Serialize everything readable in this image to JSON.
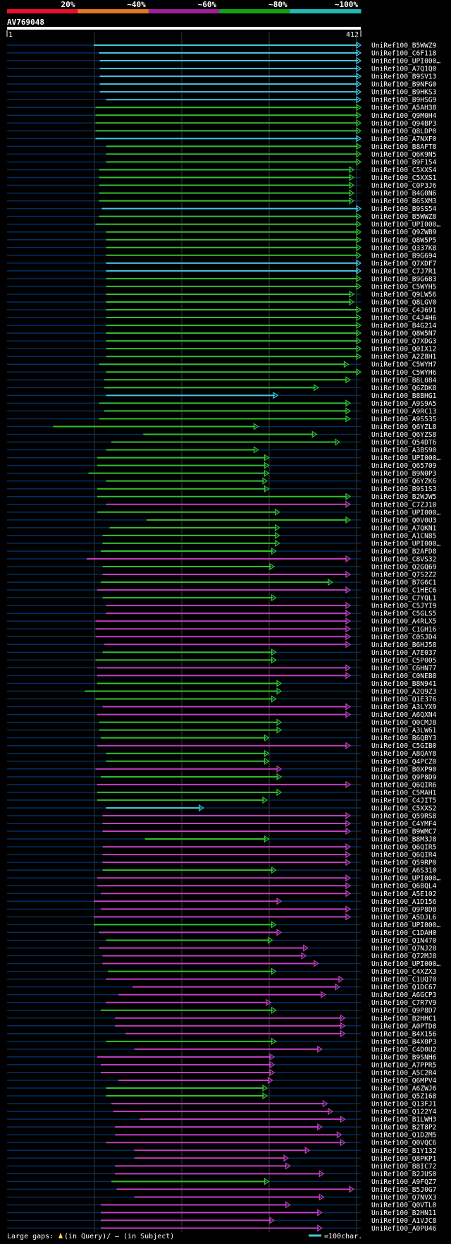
{
  "chart_data": {
    "type": "alignment-overview",
    "query_id": "AV769048",
    "query_start": "1",
    "query_end": "412",
    "scale_labels": [
      "20%",
      "~40%",
      "~60%",
      "~80%",
      "~100%"
    ],
    "scale_colors": [
      "#e8102a",
      "#e07820",
      "#a0209a",
      "#18a018",
      "#20b8b8"
    ],
    "row_colors": {
      "cyan": "#40c8e0",
      "green": "#30c030",
      "magenta": "#c040c0",
      "blue": "#003060"
    },
    "legend": {
      "gaps_prefix": "Large gaps: ",
      "gaps_query": "(in Query)/",
      "gaps_subject": "– (in Subject)",
      "scale": "=100char."
    },
    "hits": [
      {
        "name": "UniRef100_B5WWZ9",
        "color": "cyan",
        "start": 0.245,
        "end": 1.0
      },
      {
        "name": "UniRef100_C6F118",
        "color": "cyan",
        "start": 0.26,
        "end": 1.0
      },
      {
        "name": "UniRef100_UPI000…",
        "color": "cyan",
        "start": 0.262,
        "end": 1.0
      },
      {
        "name": "UniRef100_A7Q1Q0",
        "color": "cyan",
        "start": 0.262,
        "end": 1.0
      },
      {
        "name": "UniRef100_B9SV13",
        "color": "cyan",
        "start": 0.262,
        "end": 1.0
      },
      {
        "name": "UniRef100_B9NFG0",
        "color": "cyan",
        "start": 0.262,
        "end": 1.0
      },
      {
        "name": "UniRef100_B9HKS3",
        "color": "cyan",
        "start": 0.262,
        "end": 1.0
      },
      {
        "name": "UniRef100_B9HSG9",
        "color": "cyan",
        "start": 0.28,
        "end": 1.0
      },
      {
        "name": "UniRef100_A5AH38",
        "color": "green",
        "start": 0.25,
        "end": 1.0
      },
      {
        "name": "UniRef100_Q9M0H4",
        "color": "green",
        "start": 0.25,
        "end": 1.0
      },
      {
        "name": "UniRef100_Q94BP3",
        "color": "green",
        "start": 0.25,
        "end": 1.0
      },
      {
        "name": "UniRef100_Q8LDP0",
        "color": "green",
        "start": 0.25,
        "end": 1.0
      },
      {
        "name": "UniRef100_A7NXF0",
        "color": "cyan",
        "start": 0.25,
        "end": 1.0
      },
      {
        "name": "UniRef100_B8AFT8",
        "color": "green",
        "start": 0.28,
        "end": 1.0
      },
      {
        "name": "UniRef100_Q6K9N5",
        "color": "green",
        "start": 0.28,
        "end": 1.0
      },
      {
        "name": "UniRef100_B9F154",
        "color": "green",
        "start": 0.28,
        "end": 1.0
      },
      {
        "name": "UniRef100_C5XXS4",
        "color": "green",
        "start": 0.26,
        "end": 0.98
      },
      {
        "name": "UniRef100_C5XXS1",
        "color": "green",
        "start": 0.26,
        "end": 0.98
      },
      {
        "name": "UniRef100_C0P3J6",
        "color": "green",
        "start": 0.26,
        "end": 0.98
      },
      {
        "name": "UniRef100_B4G0N6",
        "color": "green",
        "start": 0.26,
        "end": 0.98
      },
      {
        "name": "UniRef100_B6SXM3",
        "color": "green",
        "start": 0.26,
        "end": 0.98
      },
      {
        "name": "UniRef100_B9SS54",
        "color": "cyan",
        "start": 0.268,
        "end": 1.0
      },
      {
        "name": "UniRef100_B5WWZ8",
        "color": "green",
        "start": 0.26,
        "end": 1.0
      },
      {
        "name": "UniRef100_UPI000…",
        "color": "green",
        "start": 0.25,
        "end": 1.0
      },
      {
        "name": "UniRef100_Q9ZWB9",
        "color": "green",
        "start": 0.28,
        "end": 1.0
      },
      {
        "name": "UniRef100_Q8W5P5",
        "color": "green",
        "start": 0.28,
        "end": 1.0
      },
      {
        "name": "UniRef100_Q337K8",
        "color": "green",
        "start": 0.28,
        "end": 1.0
      },
      {
        "name": "UniRef100_B9G694",
        "color": "green",
        "start": 0.28,
        "end": 1.0
      },
      {
        "name": "UniRef100_Q7XDF7",
        "color": "cyan",
        "start": 0.28,
        "end": 1.0
      },
      {
        "name": "UniRef100_C7J7R1",
        "color": "cyan",
        "start": 0.28,
        "end": 1.0
      },
      {
        "name": "UniRef100_B9G683",
        "color": "green",
        "start": 0.28,
        "end": 1.0
      },
      {
        "name": "UniRef100_C5WYH5",
        "color": "green",
        "start": 0.28,
        "end": 1.0
      },
      {
        "name": "UniRef100_Q9LW56",
        "color": "green",
        "start": 0.28,
        "end": 0.98
      },
      {
        "name": "UniRef100_Q8LGV0",
        "color": "green",
        "start": 0.28,
        "end": 0.98
      },
      {
        "name": "UniRef100_C4J691",
        "color": "green",
        "start": 0.28,
        "end": 1.0
      },
      {
        "name": "UniRef100_C4J4H6",
        "color": "green",
        "start": 0.28,
        "end": 1.0
      },
      {
        "name": "UniRef100_B4G214",
        "color": "green",
        "start": 0.28,
        "end": 1.0
      },
      {
        "name": "UniRef100_Q8W5N7",
        "color": "green",
        "start": 0.28,
        "end": 1.0
      },
      {
        "name": "UniRef100_Q7XDG3",
        "color": "green",
        "start": 0.28,
        "end": 1.0
      },
      {
        "name": "UniRef100_Q0IX12",
        "color": "green",
        "start": 0.28,
        "end": 1.0
      },
      {
        "name": "UniRef100_A2Z8H1",
        "color": "green",
        "start": 0.28,
        "end": 1.0
      },
      {
        "name": "UniRef100_C5WYH7",
        "color": "green",
        "start": 0.26,
        "end": 0.965
      },
      {
        "name": "UniRef100_C5WYH6",
        "color": "green",
        "start": 0.28,
        "end": 1.0
      },
      {
        "name": "UniRef100_B8L084",
        "color": "green",
        "start": 0.275,
        "end": 0.97
      },
      {
        "name": "UniRef100_Q6ZDK8",
        "color": "green",
        "start": 0.275,
        "end": 0.88
      },
      {
        "name": "UniRef100_B8BHG1",
        "color": "cyan",
        "start": 0.28,
        "end": 0.765
      },
      {
        "name": "UniRef100_A9S9A5",
        "color": "green",
        "start": 0.26,
        "end": 0.97
      },
      {
        "name": "UniRef100_A9RC13",
        "color": "green",
        "start": 0.275,
        "end": 0.97
      },
      {
        "name": "UniRef100_A9S535",
        "color": "green",
        "start": 0.26,
        "end": 0.97
      },
      {
        "name": "UniRef100_Q6YZL8",
        "color": "green",
        "start": 0.13,
        "end": 0.71
      },
      {
        "name": "UniRef100_Q6YZS8",
        "color": "green",
        "start": 0.385,
        "end": 0.875
      },
      {
        "name": "UniRef100_Q54DT6",
        "color": "green",
        "start": 0.295,
        "end": 0.94
      },
      {
        "name": "UniRef100_A3BS90",
        "color": "green",
        "start": 0.28,
        "end": 0.71
      },
      {
        "name": "UniRef100_UPI000…",
        "color": "green",
        "start": 0.255,
        "end": 0.74
      },
      {
        "name": "UniRef100_Q65709",
        "color": "green",
        "start": 0.255,
        "end": 0.74
      },
      {
        "name": "UniRef100_B9N0P3",
        "color": "green",
        "start": 0.23,
        "end": 0.74
      },
      {
        "name": "UniRef100_Q6YZK6",
        "color": "green",
        "start": 0.28,
        "end": 0.735
      },
      {
        "name": "UniRef100_B9S1S3",
        "color": "green",
        "start": 0.255,
        "end": 0.74
      },
      {
        "name": "UniRef100_B2WJW5",
        "color": "green",
        "start": 0.255,
        "end": 0.97
      },
      {
        "name": "UniRef100_C7ZJ10",
        "color": "magenta",
        "start": 0.28,
        "end": 0.97
      },
      {
        "name": "UniRef100_UPI000…",
        "color": "green",
        "start": 0.255,
        "end": 0.77
      },
      {
        "name": "UniRef100_Q0V0U3",
        "color": "green",
        "start": 0.395,
        "end": 0.97
      },
      {
        "name": "UniRef100_A7QKN1",
        "color": "green",
        "start": 0.29,
        "end": 0.77
      },
      {
        "name": "UniRef100_A1CN85",
        "color": "green",
        "start": 0.27,
        "end": 0.77
      },
      {
        "name": "UniRef100_UPI000…",
        "color": "green",
        "start": 0.27,
        "end": 0.77
      },
      {
        "name": "UniRef100_B2AFD8",
        "color": "green",
        "start": 0.265,
        "end": 0.76
      },
      {
        "name": "UniRef100_C8VS32",
        "color": "magenta",
        "start": 0.225,
        "end": 0.97
      },
      {
        "name": "UniRef100_Q2GQ69",
        "color": "green",
        "start": 0.27,
        "end": 0.755
      },
      {
        "name": "UniRef100_Q7S2Z2",
        "color": "magenta",
        "start": 0.27,
        "end": 0.97
      },
      {
        "name": "UniRef100_B7G6C1",
        "color": "green",
        "start": 0.265,
        "end": 0.92
      },
      {
        "name": "UniRef100_C1HEC6",
        "color": "magenta",
        "start": 0.255,
        "end": 0.97
      },
      {
        "name": "UniRef100_C7YQL1",
        "color": "green",
        "start": 0.27,
        "end": 0.76
      },
      {
        "name": "UniRef100_C5JYI9",
        "color": "magenta",
        "start": 0.28,
        "end": 0.97
      },
      {
        "name": "UniRef100_C5GLS5",
        "color": "magenta",
        "start": 0.28,
        "end": 0.97
      },
      {
        "name": "UniRef100_A4RLX5",
        "color": "magenta",
        "start": 0.25,
        "end": 0.97
      },
      {
        "name": "UniRef100_C1GH16",
        "color": "magenta",
        "start": 0.25,
        "end": 0.97
      },
      {
        "name": "UniRef100_C0SJD4",
        "color": "magenta",
        "start": 0.25,
        "end": 0.97
      },
      {
        "name": "UniRef100_B6HJ58",
        "color": "magenta",
        "start": 0.275,
        "end": 0.97
      },
      {
        "name": "UniRef100_A7E037",
        "color": "green",
        "start": 0.27,
        "end": 0.76
      },
      {
        "name": "UniRef100_C5P005",
        "color": "green",
        "start": 0.25,
        "end": 0.76
      },
      {
        "name": "UniRef100_C6HN77",
        "color": "magenta",
        "start": 0.255,
        "end": 0.97
      },
      {
        "name": "UniRef100_C0NEB8",
        "color": "magenta",
        "start": 0.255,
        "end": 0.97
      },
      {
        "name": "UniRef100_B8N941",
        "color": "green",
        "start": 0.255,
        "end": 0.775
      },
      {
        "name": "UniRef100_A2Q9Z3",
        "color": "green",
        "start": 0.22,
        "end": 0.775
      },
      {
        "name": "UniRef100_Q1E376",
        "color": "green",
        "start": 0.25,
        "end": 0.76
      },
      {
        "name": "UniRef100_A3LYX9",
        "color": "magenta",
        "start": 0.27,
        "end": 0.97
      },
      {
        "name": "UniRef100_A6QXN4",
        "color": "magenta",
        "start": 0.255,
        "end": 0.97
      },
      {
        "name": "UniRef100_Q0CMJ8",
        "color": "green",
        "start": 0.26,
        "end": 0.775
      },
      {
        "name": "UniRef100_A3LW61",
        "color": "green",
        "start": 0.26,
        "end": 0.775
      },
      {
        "name": "UniRef100_B6QBY3",
        "color": "green",
        "start": 0.265,
        "end": 0.74
      },
      {
        "name": "UniRef100_C5GIB0",
        "color": "magenta",
        "start": 0.255,
        "end": 0.97
      },
      {
        "name": "UniRef100_A8QAY8",
        "color": "green",
        "start": 0.28,
        "end": 0.74
      },
      {
        "name": "UniRef100_Q4PCZ0",
        "color": "green",
        "start": 0.28,
        "end": 0.74
      },
      {
        "name": "UniRef100_B0XP90",
        "color": "magenta",
        "start": 0.25,
        "end": 0.775
      },
      {
        "name": "UniRef100_Q9P8D9",
        "color": "green",
        "start": 0.265,
        "end": 0.775
      },
      {
        "name": "UniRef100_Q6QIR6",
        "color": "magenta",
        "start": 0.255,
        "end": 0.97
      },
      {
        "name": "UniRef100_C5MAH1",
        "color": "green",
        "start": 0.255,
        "end": 0.775
      },
      {
        "name": "UniRef100_C4JIT5",
        "color": "green",
        "start": 0.255,
        "end": 0.735
      },
      {
        "name": "UniRef100_C5XXS2",
        "color": "cyan",
        "start": 0.28,
        "end": 0.555
      },
      {
        "name": "UniRef100_Q59RS8",
        "color": "magenta",
        "start": 0.27,
        "end": 0.97
      },
      {
        "name": "UniRef100_C4YMF4",
        "color": "magenta",
        "start": 0.27,
        "end": 0.97
      },
      {
        "name": "UniRef100_B9WMC7",
        "color": "magenta",
        "start": 0.27,
        "end": 0.97
      },
      {
        "name": "UniRef100_B8M3J8",
        "color": "green",
        "start": 0.39,
        "end": 0.74
      },
      {
        "name": "UniRef100_Q6QIR5",
        "color": "magenta",
        "start": 0.27,
        "end": 0.97
      },
      {
        "name": "UniRef100_Q6QIR4",
        "color": "magenta",
        "start": 0.27,
        "end": 0.97
      },
      {
        "name": "UniRef100_Q59RP0",
        "color": "magenta",
        "start": 0.27,
        "end": 0.97
      },
      {
        "name": "UniRef100_A6S310",
        "color": "green",
        "start": 0.27,
        "end": 0.76
      },
      {
        "name": "UniRef100_UPI000…",
        "color": "magenta",
        "start": 0.255,
        "end": 0.97
      },
      {
        "name": "UniRef100_Q6BQL4",
        "color": "magenta",
        "start": 0.255,
        "end": 0.97
      },
      {
        "name": "UniRef100_A5E102",
        "color": "magenta",
        "start": 0.265,
        "end": 0.97
      },
      {
        "name": "UniRef100_A1D156",
        "color": "magenta",
        "start": 0.245,
        "end": 0.775
      },
      {
        "name": "UniRef100_Q9P8D8",
        "color": "magenta",
        "start": 0.265,
        "end": 0.97
      },
      {
        "name": "UniRef100_A5DJL6",
        "color": "magenta",
        "start": 0.245,
        "end": 0.97
      },
      {
        "name": "UniRef100_UPI000…",
        "color": "green",
        "start": 0.245,
        "end": 0.76
      },
      {
        "name": "UniRef100_C1DAH0",
        "color": "magenta",
        "start": 0.26,
        "end": 0.775
      },
      {
        "name": "UniRef100_Q1N470",
        "color": "green",
        "start": 0.28,
        "end": 0.75
      },
      {
        "name": "UniRef100_Q7NJ28",
        "color": "magenta",
        "start": 0.26,
        "end": 0.85
      },
      {
        "name": "UniRef100_Q72MJ8",
        "color": "magenta",
        "start": 0.27,
        "end": 0.845
      },
      {
        "name": "UniRef100_UPI000…",
        "color": "magenta",
        "start": 0.27,
        "end": 0.88
      },
      {
        "name": "UniRef100_C4XZX3",
        "color": "green",
        "start": 0.285,
        "end": 0.76
      },
      {
        "name": "UniRef100_C1UQ70",
        "color": "magenta",
        "start": 0.28,
        "end": 0.95
      },
      {
        "name": "UniRef100_Q1DC67",
        "color": "magenta",
        "start": 0.355,
        "end": 0.94
      },
      {
        "name": "UniRef100_A6GCP3",
        "color": "magenta",
        "start": 0.315,
        "end": 0.9
      },
      {
        "name": "UniRef100_C7R7V9",
        "color": "magenta",
        "start": 0.28,
        "end": 0.745
      },
      {
        "name": "UniRef100_Q9P8D7",
        "color": "green",
        "start": 0.265,
        "end": 0.76
      },
      {
        "name": "UniRef100_B2HHC1",
        "color": "magenta",
        "start": 0.305,
        "end": 0.955
      },
      {
        "name": "UniRef100_A0PTD8",
        "color": "magenta",
        "start": 0.305,
        "end": 0.955
      },
      {
        "name": "UniRef100_B4X156",
        "color": "magenta",
        "start": 0.335,
        "end": 0.955
      },
      {
        "name": "UniRef100_B4X0P3",
        "color": "green",
        "start": 0.28,
        "end": 0.76
      },
      {
        "name": "UniRef100_C4D0U2",
        "color": "magenta",
        "start": 0.36,
        "end": 0.89
      },
      {
        "name": "UniRef100_B9SNH6",
        "color": "magenta",
        "start": 0.255,
        "end": 0.755
      },
      {
        "name": "UniRef100_A7PPR5",
        "color": "magenta",
        "start": 0.265,
        "end": 0.755
      },
      {
        "name": "UniRef100_A5C2R4",
        "color": "magenta",
        "start": 0.265,
        "end": 0.755
      },
      {
        "name": "UniRef100_Q6MPV4",
        "color": "magenta",
        "start": 0.315,
        "end": 0.75
      },
      {
        "name": "UniRef100_A6ZWJ6",
        "color": "green",
        "start": 0.28,
        "end": 0.735
      },
      {
        "name": "UniRef100_Q5Z168",
        "color": "green",
        "start": 0.28,
        "end": 0.735
      },
      {
        "name": "UniRef100_Q13FJ1",
        "color": "magenta",
        "start": 0.295,
        "end": 0.905
      },
      {
        "name": "UniRef100_Q122Y4",
        "color": "magenta",
        "start": 0.3,
        "end": 0.92
      },
      {
        "name": "UniRef100_B1LWH3",
        "color": "magenta",
        "start": 0.375,
        "end": 0.955
      },
      {
        "name": "UniRef100_B2T8P2",
        "color": "magenta",
        "start": 0.305,
        "end": 0.89
      },
      {
        "name": "UniRef100_Q1D2M5",
        "color": "magenta",
        "start": 0.305,
        "end": 0.945
      },
      {
        "name": "UniRef100_Q0VQC6",
        "color": "magenta",
        "start": 0.28,
        "end": 0.955
      },
      {
        "name": "UniRef100_B1Y132",
        "color": "magenta",
        "start": 0.36,
        "end": 0.855
      },
      {
        "name": "UniRef100_Q8PKP1",
        "color": "magenta",
        "start": 0.36,
        "end": 0.795
      },
      {
        "name": "UniRef100_B8IC72",
        "color": "magenta",
        "start": 0.305,
        "end": 0.8
      },
      {
        "name": "UniRef100_B2JUS0",
        "color": "magenta",
        "start": 0.305,
        "end": 0.895
      },
      {
        "name": "UniRef100_A9FQZ7",
        "color": "green",
        "start": 0.295,
        "end": 0.74
      },
      {
        "name": "UniRef100_B5J0G7",
        "color": "magenta",
        "start": 0.31,
        "end": 0.98
      },
      {
        "name": "UniRef100_Q7NVX3",
        "color": "magenta",
        "start": 0.36,
        "end": 0.895
      },
      {
        "name": "UniRef100_Q0VTL0",
        "color": "magenta",
        "start": 0.265,
        "end": 0.8
      },
      {
        "name": "UniRef100_B2HN11",
        "color": "magenta",
        "start": 0.265,
        "end": 0.89
      },
      {
        "name": "UniRef100_A1VJC8",
        "color": "magenta",
        "start": 0.265,
        "end": 0.755
      },
      {
        "name": "UniRef100_A0PU46",
        "color": "magenta",
        "start": 0.265,
        "end": 0.89
      }
    ]
  }
}
